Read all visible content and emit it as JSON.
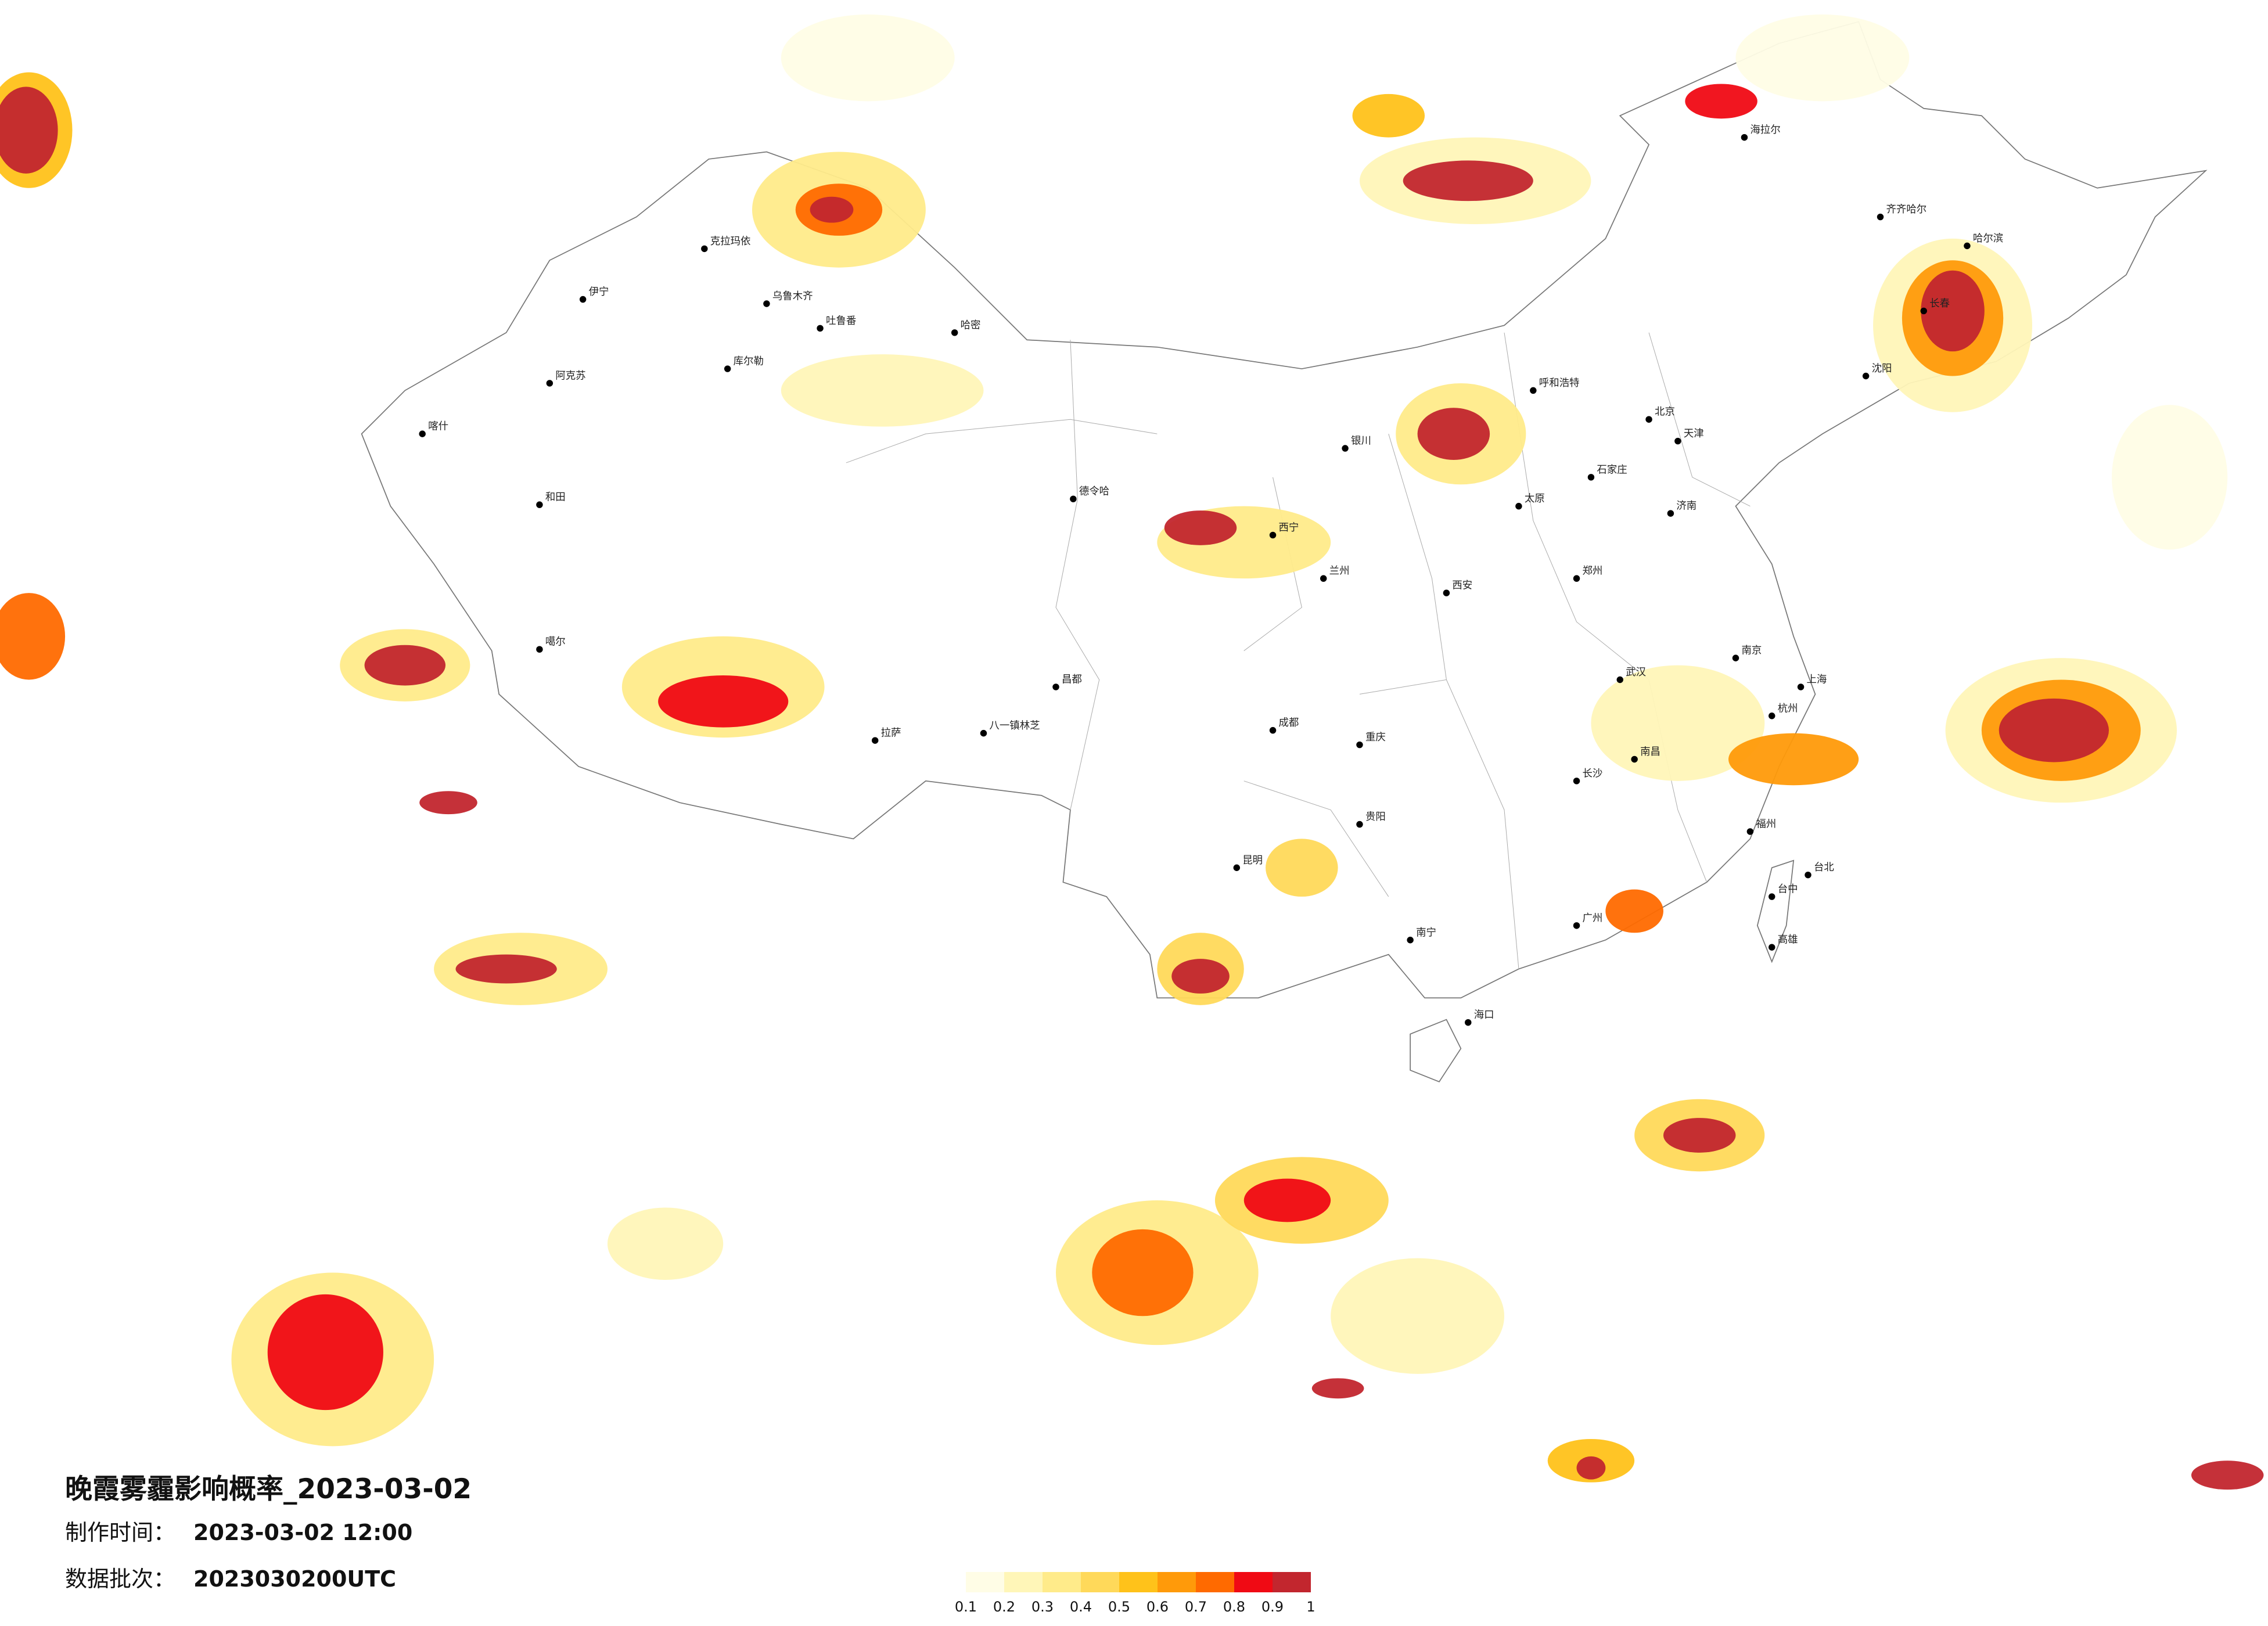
{
  "title": "晚霞雾霾影响概率_2023-03-02",
  "info": [
    {
      "label": "制作时间：",
      "value": "2023-03-02 12:00"
    },
    {
      "label": "数据批次：",
      "value": "2023030200UTC"
    }
  ],
  "legend": {
    "ticks": [
      0.1,
      0.2,
      0.3,
      0.4,
      0.5,
      0.6,
      0.7,
      0.8,
      0.9,
      1
    ],
    "colors": [
      "#fffde6",
      "#fff6b8",
      "#ffeb8a",
      "#ffd95a",
      "#ffc21a",
      "#ff9a0a",
      "#ff6a00",
      "#f00a14",
      "#c2262e"
    ]
  },
  "cities": [
    "克拉玛依",
    "乌鲁木齐",
    "吐鲁番",
    "哈密",
    "伊宁",
    "阿克苏",
    "库尔勒",
    "和田",
    "喀什",
    "噶尔",
    "拉萨",
    "八一镇林芝",
    "昌都",
    "德令哈",
    "西宁",
    "兰州",
    "银川",
    "呼和浩特",
    "海拉尔",
    "齐齐哈尔",
    "哈尔滨",
    "长春",
    "沈阳",
    "北京",
    "天津",
    "石家庄",
    "太原",
    "济南",
    "郑州",
    "西安",
    "成都",
    "重庆",
    "武汉",
    "南京",
    "上海",
    "杭州",
    "长沙",
    "南昌",
    "福州",
    "广州",
    "南宁",
    "昆明",
    "贵阳",
    "海口",
    "台北",
    "台中",
    "高雄"
  ]
}
